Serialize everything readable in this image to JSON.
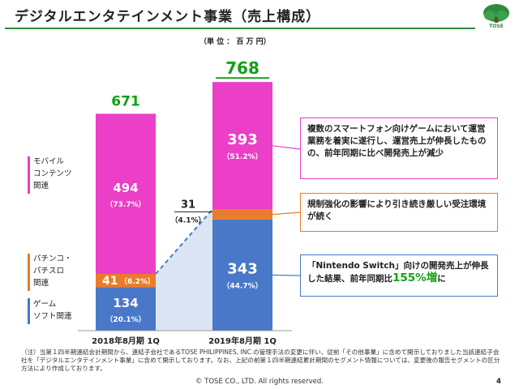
{
  "header": {
    "title": "デジタルエンタテインメント事業（売上構成）",
    "logo_text": "TOSE",
    "unit": "（単 位 ： 百 万 円）"
  },
  "colors": {
    "mobile": "#ea3fc6",
    "pachinko": "#ea7c2a",
    "game": "#4a78c8",
    "total": "#13a013",
    "connector": "#dbe5f3"
  },
  "chart_data": {
    "type": "bar",
    "stacked": true,
    "categories": [
      "2018年8月期 1Q",
      "2019年8月期 1Q"
    ],
    "series": [
      {
        "name": "ゲーム ソフト関連",
        "values": [
          134,
          343
        ],
        "shares": [
          "（20.1%）",
          "（44.7%）"
        ]
      },
      {
        "name": "パチンコ・ パチスロ 関連",
        "values": [
          41,
          31
        ],
        "shares": [
          "（6.2%）",
          "（4.1%）"
        ]
      },
      {
        "name": "モバイル コンテンツ 関連",
        "values": [
          494,
          393
        ],
        "shares": [
          "（73.7%）",
          "（51.2%）"
        ]
      }
    ],
    "totals": [
      671,
      768
    ]
  },
  "legend": [
    {
      "lines": [
        "モバイル",
        "コンテンツ",
        "関連"
      ]
    },
    {
      "lines": [
        "パチンコ・",
        "パチスロ",
        "関連"
      ]
    },
    {
      "lines": [
        "ゲーム",
        "ソフト関連"
      ]
    }
  ],
  "callouts": [
    {
      "text": "複数のスマートフォン向けゲームにおいて運営業務を着実に遂行し、運営売上が伸長したものの、前年同期に比べ開発売上が減少"
    },
    {
      "text": "規制強化の影響により引き続き厳しい受注環境が続く"
    },
    {
      "pre": "「Nintendo Switch」向けの開発売上が伸長した結果、前年同期比",
      "highlight": "155%増",
      "post": "に"
    }
  ],
  "footnote": "（注）当第１四半期連結会計期間から、連結子会社であるTOSE PHILIPPINES, INC.の管理手法の変更に伴い、従前「その他事業」に含めて開示しておりました当該連結子会社を「デジタルエンタテインメント事業」に含めて開示しております。なお、上記の前第１四半期連結累計期間のセグメント情報については、変更後の報告セグメントの区分方法により作成しております。",
  "copyright": "© TOSE CO., LTD. All rights reserved.",
  "page_number": "4"
}
